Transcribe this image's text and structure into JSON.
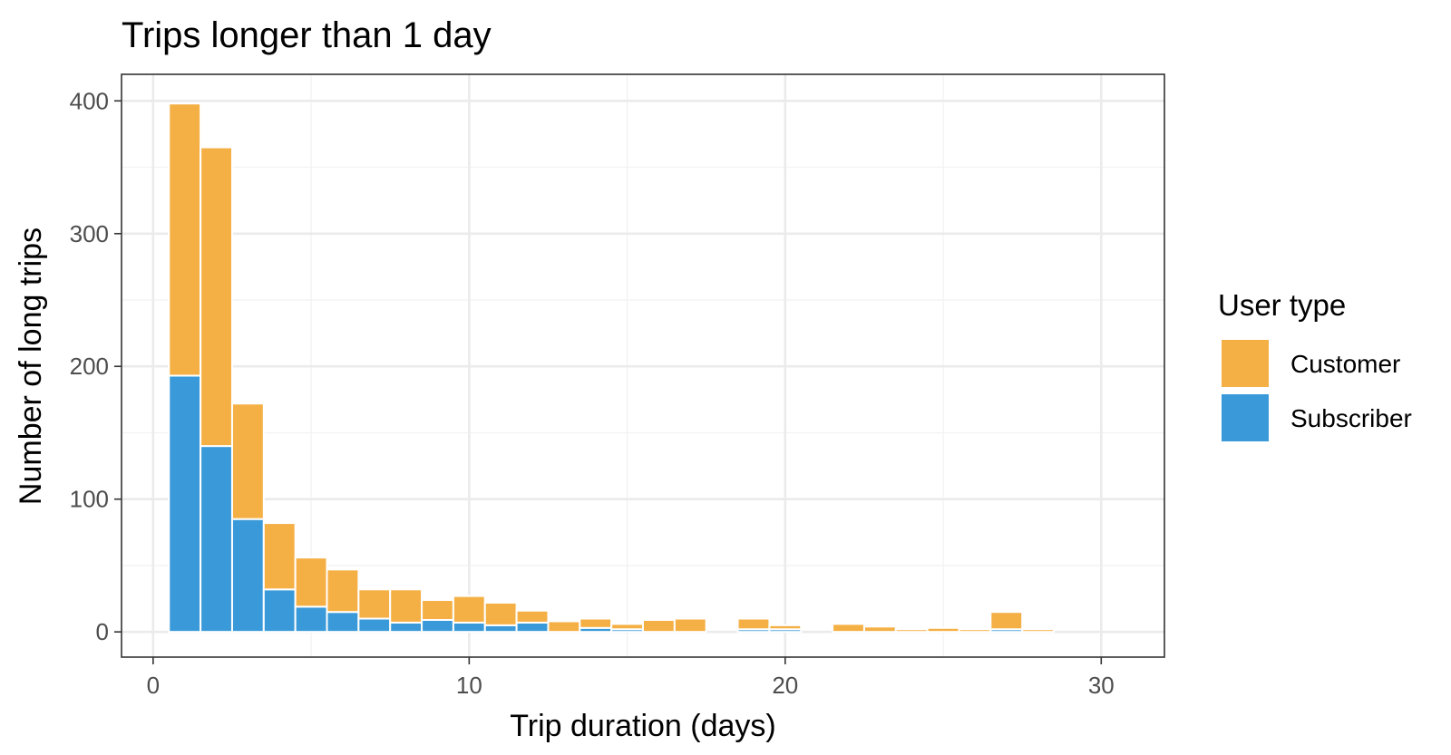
{
  "chart_data": {
    "type": "bar",
    "stacked": true,
    "title": "Trips longer than 1 day",
    "xlabel": "Trip duration (days)",
    "ylabel": "Number of long trips",
    "xlim": [
      -1,
      32
    ],
    "ylim": [
      -19,
      420
    ],
    "x_ticks": [
      "0",
      "10",
      "20",
      "30"
    ],
    "x_tick_values": [
      0,
      10,
      20,
      30
    ],
    "y_ticks": [
      "0",
      "100",
      "200",
      "300",
      "400"
    ],
    "y_tick_values": [
      0,
      100,
      200,
      300,
      400
    ],
    "grid": true,
    "legend_title": "User type",
    "legend_position": "right",
    "x": [
      1,
      2,
      3,
      4,
      5,
      6,
      7,
      8,
      9,
      10,
      11,
      12,
      13,
      14,
      15,
      16,
      17,
      18,
      19,
      20,
      21,
      22,
      23,
      24,
      25,
      26,
      27,
      28,
      29,
      30
    ],
    "series": [
      {
        "name": "Subscriber",
        "color": "#3a9ad9",
        "values": [
          193,
          140,
          85,
          32,
          19,
          15,
          10,
          7,
          9,
          7,
          5,
          7,
          0,
          3,
          2,
          0,
          0,
          0,
          2,
          2,
          0,
          0,
          0,
          0,
          0,
          0,
          2,
          0,
          0,
          0
        ]
      },
      {
        "name": "Customer",
        "color": "#f5b045",
        "values": [
          205,
          225,
          87,
          50,
          37,
          32,
          22,
          25,
          15,
          20,
          17,
          9,
          8,
          7,
          4,
          9,
          10,
          0,
          8,
          3,
          0,
          6,
          4,
          2,
          3,
          2,
          13,
          2,
          0,
          0
        ]
      }
    ]
  }
}
